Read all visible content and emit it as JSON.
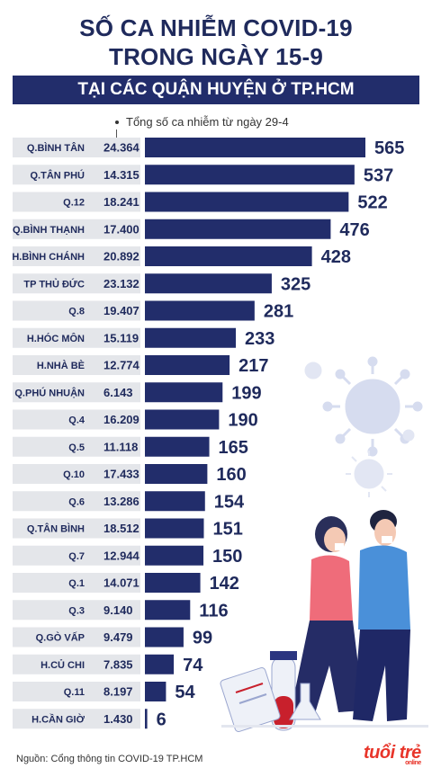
{
  "header": {
    "title_line1": "SỐ CA NHIỄM COVID-19",
    "title_line2": "TRONG NGÀY 15-9",
    "subtitle": "TẠI CÁC QUẬN HUYỆN Ở TP.HCM"
  },
  "legend_note": "Tổng số ca nhiễm từ ngày 29-4",
  "footer": {
    "source": "Nguồn: Cổng thông tin COVID-19 TP.HCM",
    "logo_text": "tuổi trẻ",
    "logo_sub": "online"
  },
  "colors": {
    "bar": "#222d6b",
    "label_bg": "#e4e6ea",
    "text": "#1f2a5c"
  },
  "chart_data": {
    "type": "bar",
    "orientation": "horizontal",
    "categories": [
      "Q.BÌNH TÂN",
      "Q.TÂN PHÚ",
      "Q.12",
      "Q.BÌNH THẠNH",
      "H.BÌNH CHÁNH",
      "TP THỦ ĐỨC",
      "Q.8",
      "H.HÓC MÔN",
      "H.NHÀ BÈ",
      "Q.PHÚ NHUẬN",
      "Q.4",
      "Q.5",
      "Q.10",
      "Q.6",
      "Q.TÂN BÌNH",
      "Q.7",
      "Q.1",
      "Q.3",
      "Q.GÒ VẤP",
      "H.CỦ CHI",
      "Q.11",
      "H.CẦN GIỜ"
    ],
    "totals": [
      "24.364",
      "14.315",
      "18.241",
      "17.400",
      "20.892",
      "23.132",
      "19.407",
      "15.119",
      "12.774",
      "6.143",
      "16.209",
      "11.118",
      "17.433",
      "13.286",
      "18.512",
      "12.944",
      "14.071",
      "9.140",
      "9.479",
      "7.835",
      "8.197",
      "1.430"
    ],
    "values": [
      565,
      537,
      522,
      476,
      428,
      325,
      281,
      233,
      217,
      199,
      190,
      165,
      160,
      154,
      151,
      150,
      142,
      116,
      99,
      74,
      54,
      6
    ],
    "xlim": [
      0,
      565
    ]
  }
}
